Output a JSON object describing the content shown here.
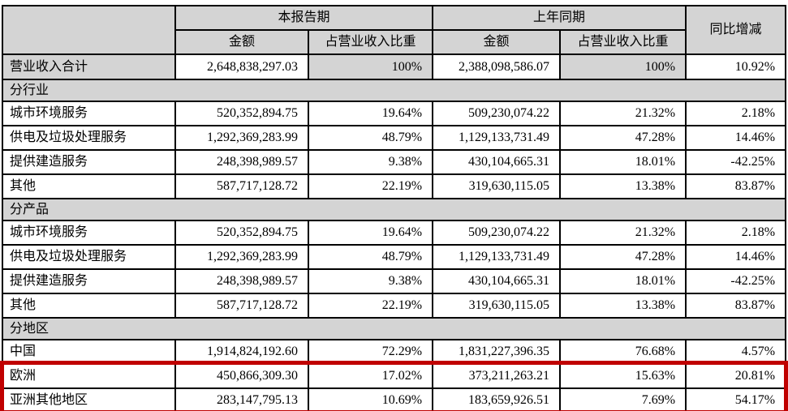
{
  "colors": {
    "header_bg": "#d4d4d4",
    "section_bg": "#d4d4d4",
    "highlight_border": "#c00000",
    "grid_border": "#000000"
  },
  "table": {
    "header": {
      "current_period": "本报告期",
      "prior_period": "上年同期",
      "yoy": "同比增减",
      "amount": "金额",
      "share": "占营业收入比重"
    },
    "rows": [
      {
        "type": "data",
        "label": "营业收入合计",
        "label_shaded": true,
        "pct_shaded": true,
        "total": true,
        "values": [
          "2,648,838,297.03",
          "100%",
          "2,388,098,586.07",
          "100%",
          "10.92%"
        ]
      },
      {
        "type": "section",
        "label": "分行业"
      },
      {
        "type": "data",
        "label": "城市环境服务",
        "values": [
          "520,352,894.75",
          "19.64%",
          "509,230,074.22",
          "21.32%",
          "2.18%"
        ]
      },
      {
        "type": "data",
        "label": "供电及垃圾处理服务",
        "values": [
          "1,292,369,283.99",
          "48.79%",
          "1,129,133,731.49",
          "47.28%",
          "14.46%"
        ]
      },
      {
        "type": "data",
        "label": "提供建造服务",
        "values": [
          "248,398,989.57",
          "9.38%",
          "430,104,665.31",
          "18.01%",
          "-42.25%"
        ]
      },
      {
        "type": "data",
        "label": "其他",
        "values": [
          "587,717,128.72",
          "22.19%",
          "319,630,115.05",
          "13.38%",
          "83.87%"
        ]
      },
      {
        "type": "section",
        "label": "分产品"
      },
      {
        "type": "data",
        "label": "城市环境服务",
        "values": [
          "520,352,894.75",
          "19.64%",
          "509,230,074.22",
          "21.32%",
          "2.18%"
        ]
      },
      {
        "type": "data",
        "label": "供电及垃圾处理服务",
        "values": [
          "1,292,369,283.99",
          "48.79%",
          "1,129,133,731.49",
          "47.28%",
          "14.46%"
        ]
      },
      {
        "type": "data",
        "label": "提供建造服务",
        "values": [
          "248,398,989.57",
          "9.38%",
          "430,104,665.31",
          "18.01%",
          "-42.25%"
        ]
      },
      {
        "type": "data",
        "label": "其他",
        "values": [
          "587,717,128.72",
          "22.19%",
          "319,630,115.05",
          "13.38%",
          "83.87%"
        ]
      },
      {
        "type": "section",
        "label": "分地区"
      },
      {
        "type": "data",
        "label": "中国",
        "values": [
          "1,914,824,192.60",
          "72.29%",
          "1,831,227,396.35",
          "76.68%",
          "4.57%"
        ]
      },
      {
        "type": "data",
        "label": "欧洲",
        "highlighted": true,
        "values": [
          "450,866,309.30",
          "17.02%",
          "373,211,263.21",
          "15.63%",
          "20.81%"
        ]
      },
      {
        "type": "data",
        "label": "亚洲其他地区",
        "highlighted": true,
        "values": [
          "283,147,795.13",
          "10.69%",
          "183,659,926.51",
          "7.69%",
          "54.17%"
        ]
      }
    ]
  }
}
